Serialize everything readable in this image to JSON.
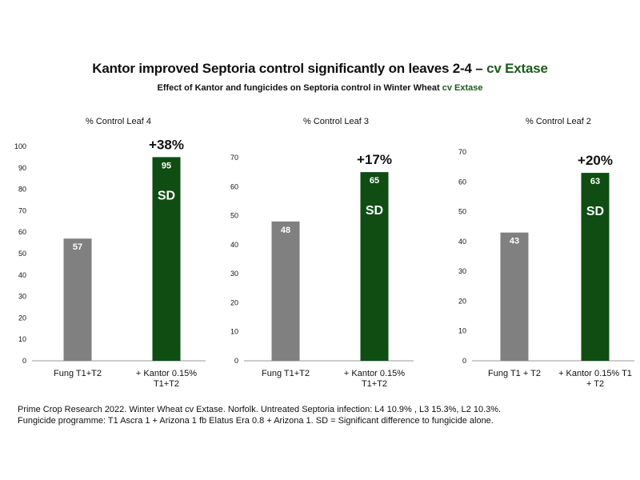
{
  "title": {
    "main": "Kantor improved Septoria control significantly on leaves 2-4 – ",
    "accent": "cv Extase"
  },
  "subtitle": {
    "main": "Effect of Kantor and fungicides on Septoria control in Winter Wheat ",
    "accent": "cv Extase"
  },
  "colors": {
    "accent": "#1a5c1a",
    "fungicide_bar": "#808080",
    "kantor_bar": "#0f4d12",
    "axis": "#999999"
  },
  "chart_data": [
    {
      "type": "bar",
      "title": "% Control Leaf 4",
      "categories": [
        "Fung T1+T2",
        "+ Kantor 0.15%\nT1+T2"
      ],
      "values": [
        57,
        95
      ],
      "data_labels": [
        "57",
        "95"
      ],
      "annotations": [
        "",
        "SD"
      ],
      "uplift": "+38%",
      "ylim": [
        0,
        100
      ],
      "yticks": [
        0,
        10,
        20,
        30,
        40,
        50,
        60,
        70,
        80,
        90,
        100
      ],
      "grid": false
    },
    {
      "type": "bar",
      "title": "% Control Leaf 3",
      "categories": [
        "Fung T1+T2",
        "+ Kantor 0.15%\nT1+T2"
      ],
      "values": [
        48,
        65
      ],
      "data_labels": [
        "48",
        "65"
      ],
      "annotations": [
        "",
        "SD"
      ],
      "uplift": "+17%",
      "ylim": [
        0,
        70
      ],
      "yticks": [
        0,
        10,
        20,
        30,
        40,
        50,
        60,
        70
      ],
      "grid": false
    },
    {
      "type": "bar",
      "title": "% Control Leaf 2",
      "categories": [
        "Fung T1 + T2",
        "+ Kantor 0.15% T1\n+ T2"
      ],
      "values": [
        43,
        63
      ],
      "data_labels": [
        "43",
        "63"
      ],
      "annotations": [
        "",
        "SD"
      ],
      "uplift": "+20%",
      "ylim": [
        0,
        70
      ],
      "yticks": [
        0,
        10,
        20,
        30,
        40,
        50,
        60,
        70
      ],
      "grid": false
    }
  ],
  "footnotes": [
    "Prime Crop Research 2022.  Winter Wheat cv Extase.  Norfolk. Untreated Septoria infection: L4 10.9% , L3 15.3%, L2 10.3%.",
    "Fungicide programme: T1 Ascra 1 + Arizona 1 fb Elatus Era 0.8 + Arizona 1. SD = Significant difference to fungicide alone."
  ]
}
